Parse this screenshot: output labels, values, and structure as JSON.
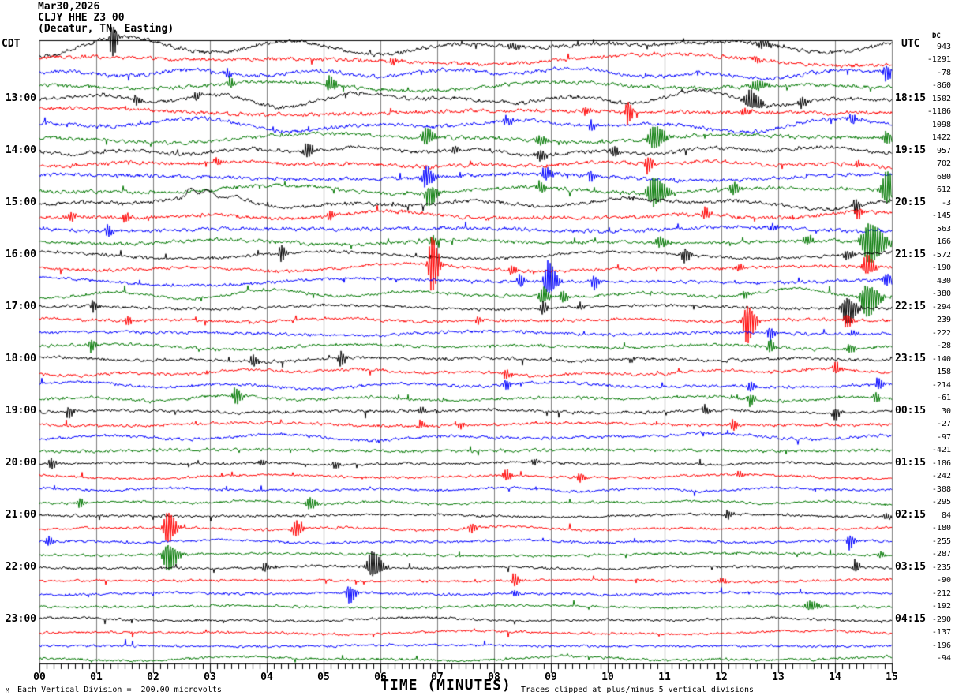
{
  "header": {
    "date": "Mar30,2026",
    "station_line": "CLJY HHE Z3 00",
    "location_line": "(Decatur, TN, Easting)",
    "left_timezone": "CDT",
    "right_timezone": "UTC",
    "dc_column_label": "DC"
  },
  "footer": {
    "xaxis_label": "TIME (MINUTES)",
    "scale_note": "Each Vertical Division =  200.00 microvolts",
    "clip_note": "Traces clipped at plus/minus 5 vertical divisions",
    "watermark": "M"
  },
  "chart_data": {
    "type": "line",
    "subtype": "helicorder-seismogram",
    "title": "Mar30,2026 CLJY HHE Z3 00 (Decatur, TN, Easting)",
    "xlabel": "TIME (MINUTES)",
    "x_range_minutes": [
      0,
      15
    ],
    "x_tick_labels": [
      "00",
      "01",
      "02",
      "03",
      "04",
      "05",
      "06",
      "07",
      "08",
      "09",
      "10",
      "11",
      "12",
      "13",
      "14",
      "15"
    ],
    "minor_ticks_per_minute": 8,
    "minutes_per_row": 15,
    "grid": true,
    "colors": {
      "trace_cycle": [
        "#000000",
        "#ff0000",
        "#0000ff",
        "#007700"
      ],
      "grid": "#7f7f7f",
      "axis": "#000000",
      "background": "#ffffff"
    },
    "rows_note": "48 trace rows of 15 minutes each, 12:00-23:45 CDT; cdt label printed on hour rows, utc label printed at row end time in UTC; dc = DC offset value printed at right",
    "rows": [
      {
        "cdt": "",
        "utc": "",
        "dc": 943
      },
      {
        "cdt": "",
        "utc": "",
        "dc": -1291
      },
      {
        "cdt": "",
        "utc": "",
        "dc": -78
      },
      {
        "cdt": "",
        "utc": "",
        "dc": -860
      },
      {
        "cdt": "13:00",
        "utc": "18:15",
        "dc": 1502
      },
      {
        "cdt": "",
        "utc": "",
        "dc": -1186
      },
      {
        "cdt": "",
        "utc": "",
        "dc": 1098
      },
      {
        "cdt": "",
        "utc": "",
        "dc": 1422
      },
      {
        "cdt": "14:00",
        "utc": "19:15",
        "dc": 957
      },
      {
        "cdt": "",
        "utc": "",
        "dc": 702
      },
      {
        "cdt": "",
        "utc": "",
        "dc": 680
      },
      {
        "cdt": "",
        "utc": "",
        "dc": 612
      },
      {
        "cdt": "15:00",
        "utc": "20:15",
        "dc": -3
      },
      {
        "cdt": "",
        "utc": "",
        "dc": -145
      },
      {
        "cdt": "",
        "utc": "",
        "dc": 563
      },
      {
        "cdt": "",
        "utc": "",
        "dc": 166
      },
      {
        "cdt": "16:00",
        "utc": "21:15",
        "dc": -572
      },
      {
        "cdt": "",
        "utc": "",
        "dc": -190
      },
      {
        "cdt": "",
        "utc": "",
        "dc": 430
      },
      {
        "cdt": "",
        "utc": "",
        "dc": -380
      },
      {
        "cdt": "17:00",
        "utc": "22:15",
        "dc": -294
      },
      {
        "cdt": "",
        "utc": "",
        "dc": 239
      },
      {
        "cdt": "",
        "utc": "",
        "dc": -222
      },
      {
        "cdt": "",
        "utc": "",
        "dc": -28
      },
      {
        "cdt": "18:00",
        "utc": "23:15",
        "dc": -140
      },
      {
        "cdt": "",
        "utc": "",
        "dc": 158
      },
      {
        "cdt": "",
        "utc": "",
        "dc": -214
      },
      {
        "cdt": "",
        "utc": "",
        "dc": -61
      },
      {
        "cdt": "19:00",
        "utc": "00:15",
        "dc": 30
      },
      {
        "cdt": "",
        "utc": "",
        "dc": -27
      },
      {
        "cdt": "",
        "utc": "",
        "dc": -97
      },
      {
        "cdt": "",
        "utc": "",
        "dc": -421
      },
      {
        "cdt": "20:00",
        "utc": "01:15",
        "dc": -186
      },
      {
        "cdt": "",
        "utc": "",
        "dc": -242
      },
      {
        "cdt": "",
        "utc": "",
        "dc": -308
      },
      {
        "cdt": "",
        "utc": "",
        "dc": -295
      },
      {
        "cdt": "21:00",
        "utc": "02:15",
        "dc": 84
      },
      {
        "cdt": "",
        "utc": "",
        "dc": -180
      },
      {
        "cdt": "",
        "utc": "",
        "dc": -255
      },
      {
        "cdt": "",
        "utc": "",
        "dc": -287
      },
      {
        "cdt": "22:00",
        "utc": "03:15",
        "dc": -235
      },
      {
        "cdt": "",
        "utc": "",
        "dc": -90
      },
      {
        "cdt": "",
        "utc": "",
        "dc": -212
      },
      {
        "cdt": "",
        "utc": "",
        "dc": -192
      },
      {
        "cdt": "23:00",
        "utc": "04:15",
        "dc": -290
      },
      {
        "cdt": "",
        "utc": "",
        "dc": -137
      },
      {
        "cdt": "",
        "utc": "",
        "dc": -196
      },
      {
        "cdt": "",
        "utc": "",
        "dc": -94
      }
    ],
    "events_format": "[row_index, minute, amplitude_px, width_px, type] type b=oscillatory burst, u=upward pulse/step",
    "events": [
      [
        0,
        1.28,
        26,
        3,
        "b"
      ],
      [
        0,
        8.3,
        4,
        6,
        "b"
      ],
      [
        0,
        11.4,
        8,
        45,
        "u"
      ],
      [
        0,
        12.7,
        5,
        8,
        "b"
      ],
      [
        1,
        6.2,
        6,
        3,
        "b"
      ],
      [
        1,
        12.6,
        5,
        4,
        "b"
      ],
      [
        2,
        3.3,
        7,
        3,
        "b"
      ],
      [
        2,
        14.9,
        11,
        4,
        "b"
      ],
      [
        3,
        3.35,
        8,
        3,
        "b"
      ],
      [
        3,
        5.1,
        11,
        4,
        "b"
      ],
      [
        3,
        12.6,
        6,
        6,
        "b"
      ],
      [
        4,
        1.7,
        7,
        3,
        "b"
      ],
      [
        4,
        2.75,
        6,
        3,
        "b"
      ],
      [
        4,
        12.5,
        14,
        7,
        "b"
      ],
      [
        4,
        13.4,
        7,
        4,
        "b"
      ],
      [
        5,
        9.6,
        6,
        3,
        "b"
      ],
      [
        5,
        10.35,
        16,
        3,
        "b"
      ],
      [
        5,
        12.4,
        5,
        4,
        "b"
      ],
      [
        6,
        8.2,
        6,
        4,
        "b"
      ],
      [
        6,
        9.7,
        7,
        3,
        "b"
      ],
      [
        6,
        14.3,
        6,
        4,
        "b"
      ],
      [
        7,
        6.8,
        12,
        5,
        "b"
      ],
      [
        7,
        8.8,
        7,
        4,
        "b"
      ],
      [
        7,
        10.8,
        16,
        7,
        "b"
      ],
      [
        7,
        14.9,
        9,
        4,
        "b"
      ],
      [
        8,
        4.7,
        11,
        4,
        "b"
      ],
      [
        8,
        7.3,
        5,
        3,
        "b"
      ],
      [
        8,
        8.8,
        9,
        4,
        "b"
      ],
      [
        8,
        10.1,
        9,
        3,
        "b"
      ],
      [
        9,
        3.1,
        5,
        3,
        "b"
      ],
      [
        9,
        10.7,
        13,
        3,
        "b"
      ],
      [
        9,
        14.4,
        5,
        3,
        "b"
      ],
      [
        10,
        6.8,
        14,
        5,
        "b"
      ],
      [
        10,
        8.9,
        9,
        5,
        "b"
      ],
      [
        10,
        9.7,
        8,
        3,
        "b"
      ],
      [
        11,
        6.85,
        16,
        5,
        "b"
      ],
      [
        11,
        8.8,
        8,
        4,
        "b"
      ],
      [
        11,
        10.8,
        20,
        8,
        "b"
      ],
      [
        11,
        12.2,
        9,
        4,
        "b"
      ],
      [
        11,
        14.9,
        24,
        6,
        "b"
      ],
      [
        12,
        2.65,
        10,
        7,
        "u"
      ],
      [
        12,
        2.95,
        8,
        5,
        "u"
      ],
      [
        12,
        3.4,
        5,
        14,
        "u"
      ],
      [
        12,
        14.35,
        11,
        3,
        "b"
      ],
      [
        13,
        0.55,
        7,
        3,
        "b"
      ],
      [
        13,
        1.5,
        7,
        3,
        "b"
      ],
      [
        13,
        5.1,
        7,
        3,
        "b"
      ],
      [
        13,
        11.7,
        9,
        3,
        "b"
      ],
      [
        13,
        14.4,
        9,
        3,
        "b"
      ],
      [
        14,
        1.2,
        9,
        3,
        "b"
      ],
      [
        14,
        12.9,
        5,
        3,
        "b"
      ],
      [
        15,
        6.9,
        7,
        4,
        "b"
      ],
      [
        15,
        10.9,
        7,
        5,
        "b"
      ],
      [
        15,
        13.5,
        7,
        4,
        "b"
      ],
      [
        15,
        14.6,
        28,
        9,
        "b"
      ],
      [
        16,
        4.25,
        11,
        3,
        "b"
      ],
      [
        16,
        11.35,
        11,
        4,
        "b"
      ],
      [
        16,
        14.2,
        7,
        4,
        "b"
      ],
      [
        17,
        6.9,
        40,
        4,
        "b"
      ],
      [
        17,
        8.3,
        7,
        3,
        "b"
      ],
      [
        17,
        12.3,
        5,
        3,
        "b"
      ],
      [
        17,
        14.55,
        16,
        5,
        "b"
      ],
      [
        18,
        8.45,
        9,
        3,
        "b"
      ],
      [
        18,
        8.95,
        26,
        5,
        "b"
      ],
      [
        18,
        9.75,
        11,
        3,
        "b"
      ],
      [
        18,
        14.9,
        9,
        4,
        "b"
      ],
      [
        19,
        8.85,
        13,
        4,
        "b"
      ],
      [
        19,
        9.2,
        9,
        3,
        "b"
      ],
      [
        19,
        12.4,
        5,
        3,
        "b"
      ],
      [
        19,
        14.55,
        24,
        7,
        "b"
      ],
      [
        20,
        0.95,
        7,
        3,
        "b"
      ],
      [
        20,
        8.85,
        9,
        3,
        "b"
      ],
      [
        20,
        9.5,
        5,
        3,
        "b"
      ],
      [
        20,
        14.2,
        20,
        6,
        "b"
      ],
      [
        21,
        1.55,
        7,
        3,
        "b"
      ],
      [
        21,
        7.7,
        5,
        3,
        "b"
      ],
      [
        21,
        12.45,
        28,
        5,
        "b"
      ],
      [
        21,
        14.2,
        9,
        4,
        "b"
      ],
      [
        22,
        12.85,
        11,
        3,
        "b"
      ],
      [
        22,
        14.3,
        5,
        3,
        "b"
      ],
      [
        23,
        0.9,
        9,
        3,
        "b"
      ],
      [
        23,
        12.85,
        9,
        3,
        "b"
      ],
      [
        23,
        14.25,
        7,
        3,
        "b"
      ],
      [
        24,
        3.75,
        9,
        3,
        "b"
      ],
      [
        24,
        5.3,
        11,
        3,
        "b"
      ],
      [
        24,
        10.4,
        4,
        3,
        "b"
      ],
      [
        25,
        8.2,
        7,
        3,
        "b"
      ],
      [
        25,
        14,
        9,
        3,
        "b"
      ],
      [
        26,
        8.2,
        7,
        3,
        "b"
      ],
      [
        26,
        12.5,
        7,
        3,
        "b"
      ],
      [
        26,
        14.75,
        9,
        3,
        "b"
      ],
      [
        27,
        3.45,
        11,
        4,
        "b"
      ],
      [
        27,
        12.5,
        9,
        3,
        "b"
      ],
      [
        27,
        14.7,
        7,
        3,
        "b"
      ],
      [
        28,
        0.5,
        9,
        3,
        "b"
      ],
      [
        28,
        6.7,
        5,
        3,
        "b"
      ],
      [
        28,
        11.7,
        7,
        3,
        "b"
      ],
      [
        28,
        14,
        9,
        3,
        "b"
      ],
      [
        29,
        6.7,
        7,
        3,
        "b"
      ],
      [
        29,
        7.4,
        5,
        3,
        "b"
      ],
      [
        29,
        12.2,
        9,
        3,
        "b"
      ],
      [
        30,
        11.6,
        5,
        40,
        "u"
      ],
      [
        32,
        0.2,
        9,
        3,
        "b"
      ],
      [
        32,
        3.9,
        5,
        3,
        "b"
      ],
      [
        32,
        5.2,
        5,
        3,
        "b"
      ],
      [
        32,
        8.7,
        5,
        3,
        "b"
      ],
      [
        33,
        8.2,
        9,
        3,
        "b"
      ],
      [
        33,
        9.5,
        7,
        3,
        "b"
      ],
      [
        33,
        12.3,
        5,
        3,
        "b"
      ],
      [
        35,
        0.7,
        7,
        3,
        "b"
      ],
      [
        35,
        4.75,
        9,
        4,
        "b"
      ],
      [
        36,
        12.1,
        7,
        3,
        "b"
      ],
      [
        36,
        14.9,
        5,
        3,
        "b"
      ],
      [
        37,
        2.25,
        22,
        5,
        "b"
      ],
      [
        37,
        4.5,
        11,
        4,
        "b"
      ],
      [
        37,
        7.6,
        7,
        3,
        "b"
      ],
      [
        38,
        0.15,
        7,
        3,
        "b"
      ],
      [
        38,
        14.25,
        11,
        3,
        "b"
      ],
      [
        39,
        2.25,
        20,
        6,
        "b"
      ],
      [
        39,
        14.8,
        5,
        3,
        "b"
      ],
      [
        40,
        3.95,
        7,
        3,
        "b"
      ],
      [
        40,
        5.85,
        20,
        6,
        "b"
      ],
      [
        40,
        14.35,
        9,
        3,
        "b"
      ],
      [
        41,
        8.35,
        9,
        3,
        "b"
      ],
      [
        41,
        12,
        4,
        3,
        "b"
      ],
      [
        42,
        5.45,
        13,
        4,
        "b"
      ],
      [
        42,
        8.35,
        5,
        3,
        "b"
      ],
      [
        43,
        13.55,
        7,
        6,
        "b"
      ]
    ]
  }
}
